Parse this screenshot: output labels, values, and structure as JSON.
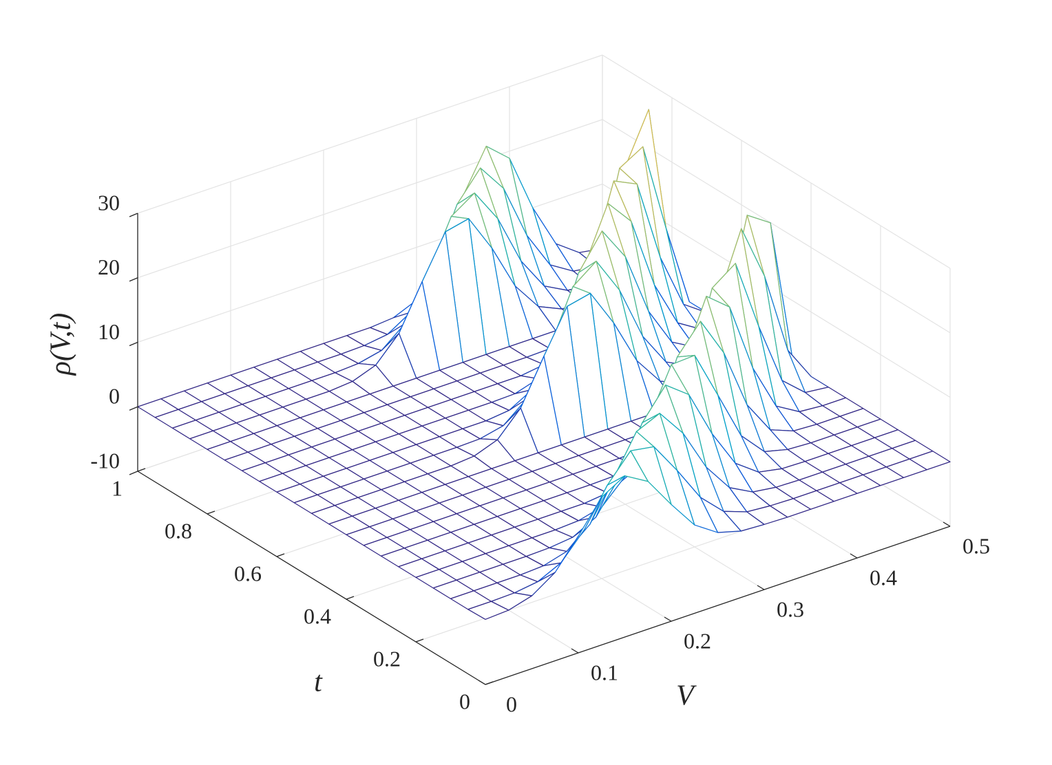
{
  "chart_data": {
    "type": "mesh",
    "xlabel": "V",
    "ylabel": "t",
    "zlabel": "ρ(V,t)",
    "x": [
      0,
      0.025,
      0.05,
      0.075,
      0.1,
      0.125,
      0.15,
      0.175,
      0.2,
      0.225,
      0.25,
      0.275,
      0.3,
      0.325,
      0.35,
      0.375,
      0.4,
      0.425,
      0.45,
      0.475,
      0.5
    ],
    "y": [
      0,
      0.05,
      0.1,
      0.15,
      0.2,
      0.25,
      0.3,
      0.35,
      0.4,
      0.45,
      0.5,
      0.55,
      0.6,
      0.65,
      0.7,
      0.75,
      0.8,
      0.85,
      0.9,
      0.95,
      1
    ],
    "z": [
      [
        0.1,
        0.3,
        1.3,
        3.7,
        8.1,
        12.9,
        15,
        12.9,
        8.1,
        3.7,
        1.3,
        0.3,
        0.1,
        0,
        0,
        0,
        0,
        0,
        0,
        0,
        0
      ],
      [
        0,
        0,
        0.1,
        0.6,
        2.3,
        6.2,
        11.9,
        16.0,
        15.4,
        10.5,
        5.1,
        1.7,
        0.4,
        0.1,
        0,
        0,
        0,
        0,
        0,
        0,
        0
      ],
      [
        0,
        0,
        0,
        0,
        0.2,
        1.2,
        4.2,
        10.0,
        16.1,
        17.7,
        13.4,
        6.9,
        2.5,
        0.6,
        0.1,
        0,
        0,
        0,
        0,
        0,
        0
      ],
      [
        0,
        0,
        0,
        0,
        0,
        0.1,
        0.5,
        2.4,
        7.3,
        14.6,
        19.2,
        16.5,
        9.2,
        3.4,
        0.8,
        0.1,
        0,
        0,
        0,
        0,
        0
      ],
      [
        0,
        0,
        0,
        0,
        0,
        0,
        0,
        0.2,
        1.1,
        4.6,
        12.0,
        19.5,
        19.7,
        12.3,
        4.8,
        1.1,
        0.2,
        0,
        0,
        0,
        0
      ],
      [
        0,
        0,
        0,
        0,
        0,
        0,
        0,
        0,
        0,
        0.4,
        2.2,
        8.3,
        17.8,
        22.1,
        16.0,
        6.7,
        1.6,
        0.2,
        0,
        0,
        0
      ],
      [
        0,
        0,
        0,
        0,
        0,
        0,
        0,
        0,
        0,
        0,
        0.1,
        0.8,
        4.7,
        14.2,
        23.1,
        20.2,
        9.5,
        2.4,
        0.3,
        0,
        0
      ],
      [
        0,
        0,
        0,
        0,
        0,
        0,
        0,
        0,
        0,
        0,
        0,
        0,
        0.2,
        1.9,
        9.3,
        21.5,
        24.1,
        13.1,
        3.5,
        0.4,
        0
      ],
      [
        0,
        0,
        0,
        0,
        0,
        0,
        0,
        0,
        0,
        0,
        0,
        0,
        0,
        0,
        0.5,
        4.6,
        16.8,
        26.6,
        18.0,
        5.3,
        0
      ],
      [
        0,
        0,
        0,
        0,
        0,
        0,
        0,
        0,
        0,
        0,
        0,
        0,
        0,
        0,
        0,
        0.1,
        1.6,
        10.5,
        25.8,
        23.4,
        0
      ],
      [
        0,
        0,
        0,
        0,
        0,
        0,
        0,
        0.3,
        1.6,
        5.3,
        12.1,
        18.6,
        19.4,
        13.6,
        6.5,
        2.1,
        0.5,
        0.1,
        0,
        0,
        0
      ],
      [
        0,
        0,
        0,
        0,
        0,
        0,
        0,
        0,
        0.1,
        0.9,
        3.8,
        10.6,
        18.8,
        21.5,
        15.8,
        7.4,
        2.2,
        0.4,
        0.1,
        0,
        0
      ],
      [
        0,
        0,
        0,
        0,
        0,
        0,
        0,
        0,
        0,
        0,
        0.4,
        2.4,
        8.4,
        18.1,
        23.3,
        18.1,
        8.4,
        2.4,
        0.4,
        0,
        0
      ],
      [
        0,
        0,
        0,
        0,
        0,
        0,
        0,
        0,
        0,
        0,
        0,
        0.1,
        1.2,
        6.0,
        16.3,
        24.7,
        20.7,
        9.6,
        2.5,
        0.3,
        0
      ],
      [
        0,
        0,
        0,
        0,
        0,
        0,
        0,
        0,
        0,
        0,
        0,
        0,
        0,
        0.5,
        3.6,
        13.5,
        25.3,
        23.6,
        11.0,
        2.5,
        0
      ],
      [
        0,
        0,
        0,
        0,
        0,
        0,
        0,
        0,
        0,
        0,
        0,
        0,
        0,
        0,
        0.1,
        1.7,
        9.8,
        24.4,
        26.5,
        12.6,
        0
      ],
      [
        0,
        0,
        0,
        0,
        0,
        0,
        0,
        0,
        0,
        0,
        0,
        0,
        0,
        0,
        0,
        0,
        0.6,
        5.9,
        21.8,
        29.4,
        0
      ],
      [
        0,
        0,
        0,
        0,
        0,
        0,
        0,
        0.3,
        1.6,
        5.3,
        12.1,
        18.6,
        19.4,
        13.6,
        6.5,
        2.1,
        0.5,
        0.1,
        0,
        0,
        0
      ],
      [
        0,
        0,
        0,
        0,
        0,
        0,
        0,
        0,
        0.2,
        1.0,
        3.9,
        10.4,
        18.1,
        20.5,
        15.3,
        7.5,
        2.4,
        0.5,
        0.1,
        0,
        0
      ],
      [
        0,
        0,
        0,
        0,
        0,
        0,
        0,
        0,
        0,
        0.1,
        0.6,
        2.8,
        8.6,
        17.1,
        21.5,
        17.1,
        8.6,
        2.8,
        0.6,
        0.1,
        0
      ],
      [
        0,
        0,
        0,
        0,
        0,
        0,
        0,
        0,
        0,
        0,
        0,
        0.3,
        1.8,
        6.7,
        15.5,
        22.0,
        18.9,
        10.0,
        3.2,
        0.6,
        0
      ]
    ],
    "xlim": [
      0,
      0.5
    ],
    "ylim": [
      0,
      1
    ],
    "zlim": [
      -10,
      30
    ],
    "xticks": [
      0,
      0.1,
      0.2,
      0.3,
      0.4,
      0.5
    ],
    "yticks": [
      0,
      0.2,
      0.4,
      0.6,
      0.8,
      1
    ],
    "zticks": [
      -10,
      0,
      10,
      20,
      30
    ],
    "grid": true,
    "colormap": [
      "#352a87",
      "#0f5cdd",
      "#1481d6",
      "#06a4ca",
      "#2eb7a4",
      "#87bf77",
      "#d1bb59",
      "#fec832",
      "#f9fb0e"
    ]
  }
}
